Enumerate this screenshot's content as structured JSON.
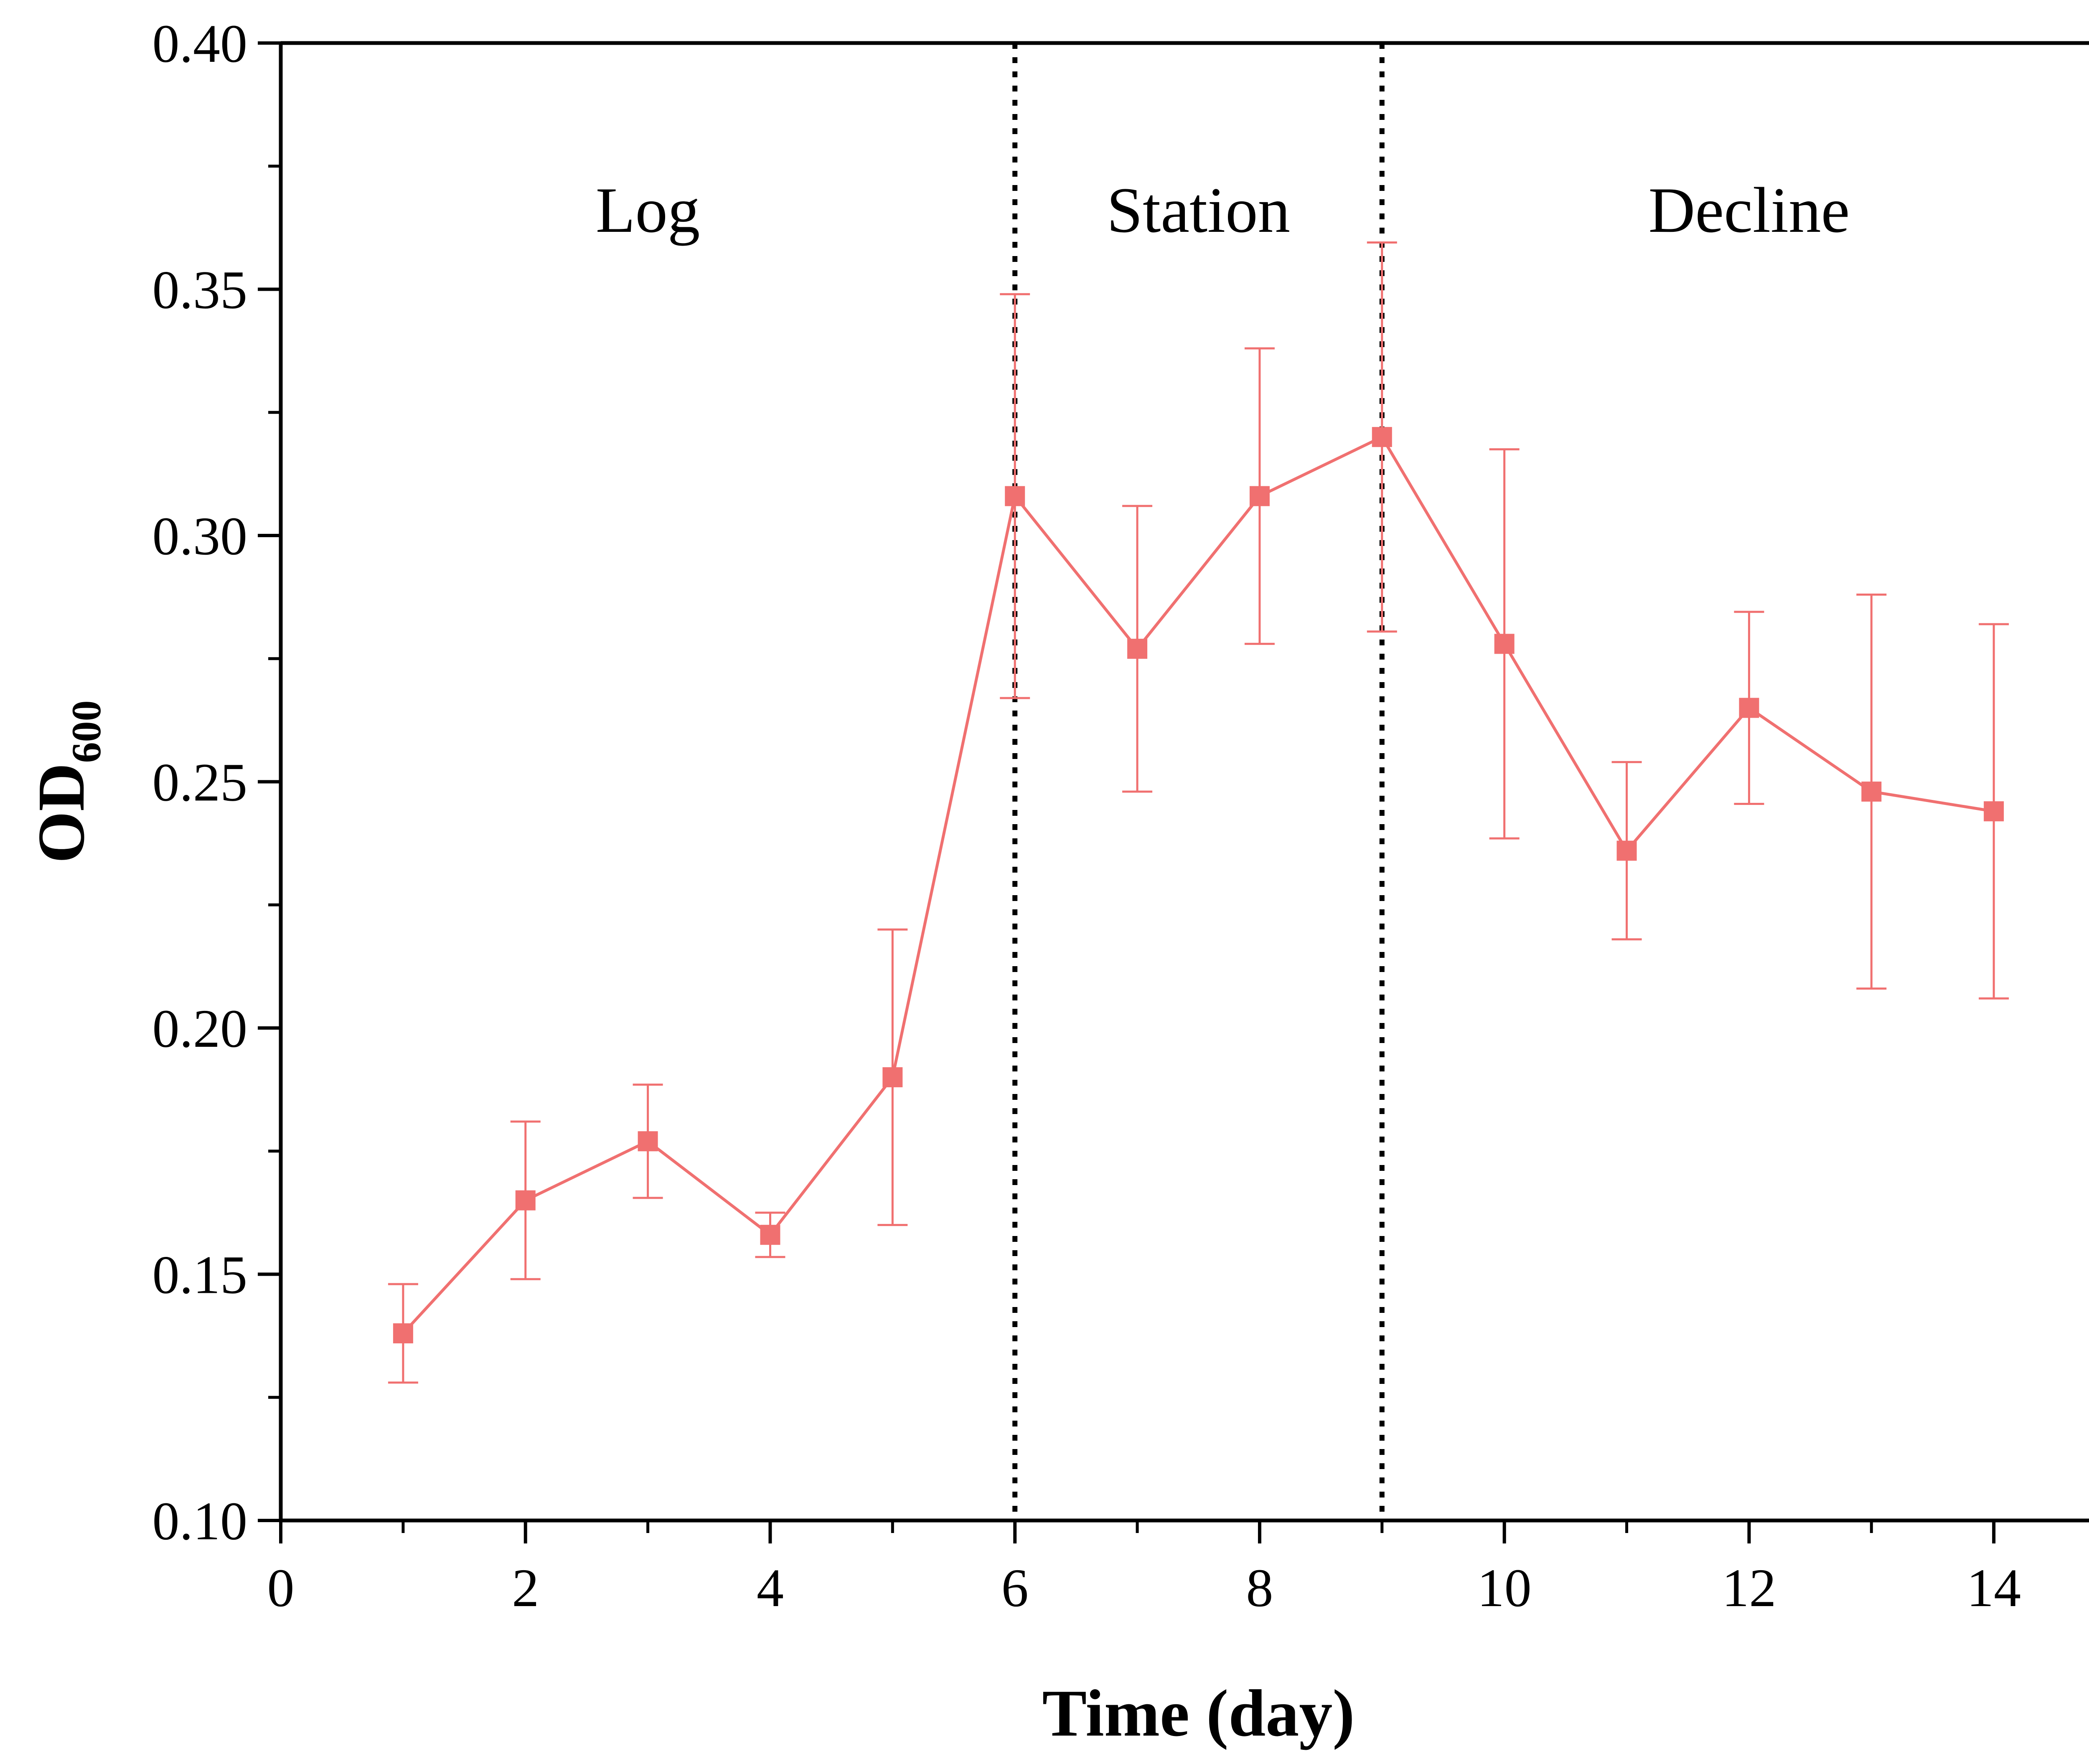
{
  "chart_data": {
    "type": "line",
    "xlabel": "Time (day)",
    "ylabel": {
      "main": "OD",
      "subscript": "600"
    },
    "xlim": [
      0,
      15
    ],
    "ylim": [
      0.1,
      0.4
    ],
    "x_ticks": [
      "0",
      "2",
      "4",
      "6",
      "8",
      "10",
      "12",
      "14"
    ],
    "y_ticks": [
      "0.10",
      "0.15",
      "0.20",
      "0.25",
      "0.30",
      "0.35",
      "0.40"
    ],
    "phase_dividers": [
      6,
      9
    ],
    "phase_labels": [
      {
        "text": "Log",
        "x": 3
      },
      {
        "text": "Station",
        "x": 7.5
      },
      {
        "text": "Decline",
        "x": 12
      }
    ],
    "series": [
      {
        "color": "#f07070",
        "marker": "square",
        "x": [
          1,
          2,
          3,
          4,
          5,
          6,
          7,
          8,
          9,
          10,
          11,
          12,
          13,
          14
        ],
        "y": [
          0.138,
          0.165,
          0.177,
          0.158,
          0.19,
          0.308,
          0.277,
          0.308,
          0.32,
          0.278,
          0.236,
          0.265,
          0.248,
          0.244
        ],
        "y_err": [
          0.01,
          0.016,
          0.0115,
          0.0045,
          0.03,
          0.041,
          0.029,
          0.03,
          0.0395,
          0.0395,
          0.018,
          0.0195,
          0.04,
          0.038
        ]
      }
    ],
    "grid": false,
    "legend": "none"
  }
}
